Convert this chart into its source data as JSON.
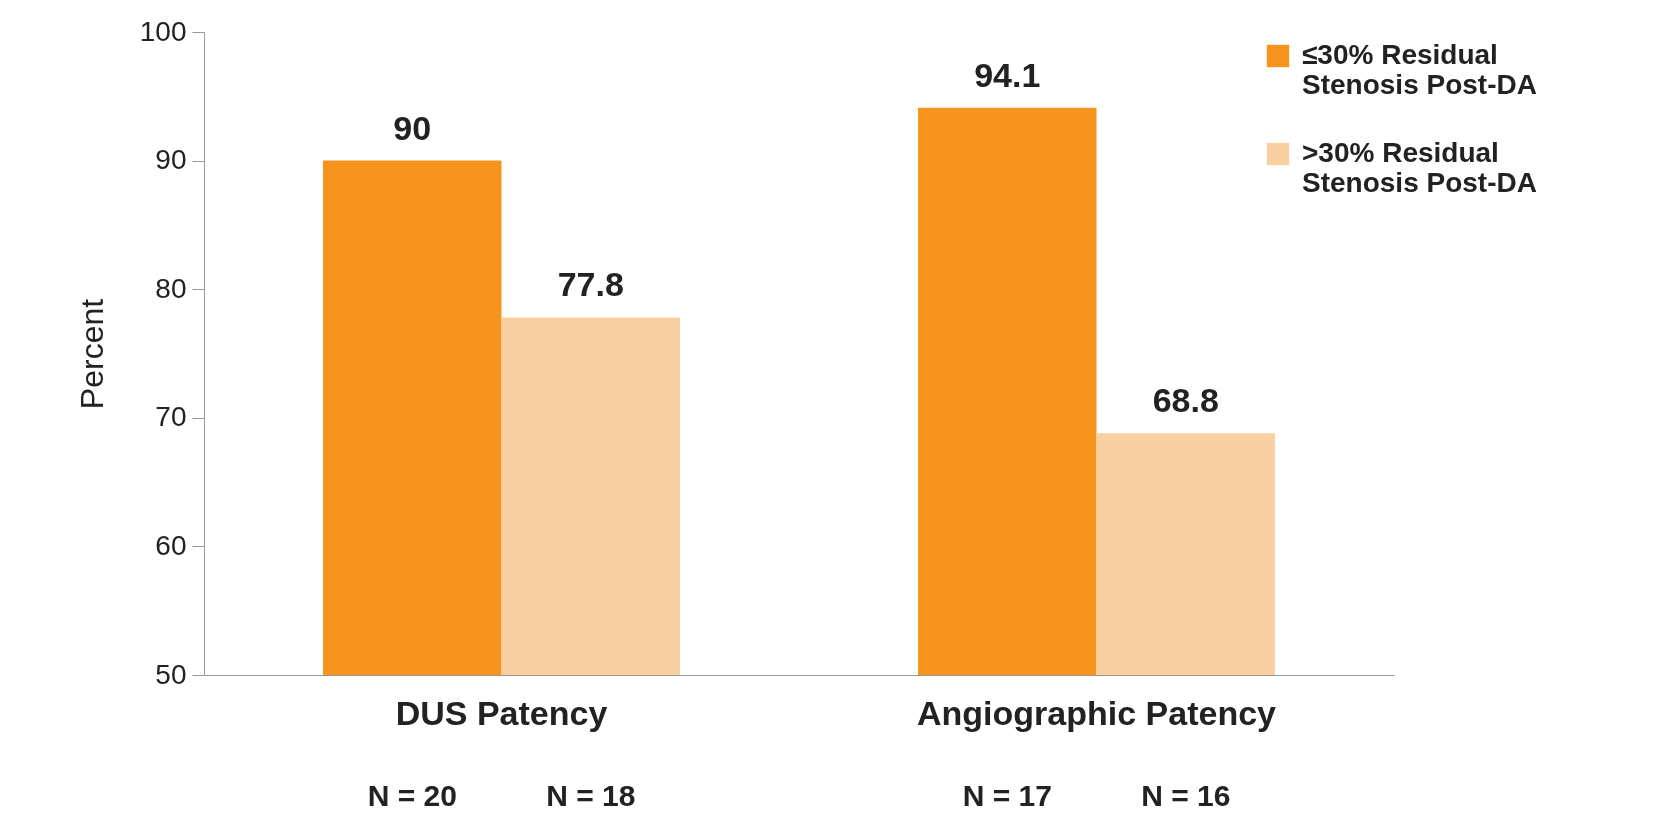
{
  "chart_data": {
    "type": "bar",
    "ylabel": "Percent",
    "categories": [
      "DUS Patency",
      "Angiographic Patency"
    ],
    "series": [
      {
        "name": "≤30% Residual Stenosis Post-DA",
        "color": "#f7941e",
        "values": [
          90,
          94.1
        ]
      },
      {
        "name": ">30% Residual Stenosis Post-DA",
        "color": "#f9d0a1",
        "values": [
          77.8,
          68.8
        ]
      }
    ],
    "ylim": [
      50,
      100
    ],
    "yticks": [
      50,
      60,
      70,
      80,
      90,
      100
    ],
    "data_labels": true,
    "legend": "top right",
    "annotations": [
      "N = 20",
      "N = 18",
      "N = 17",
      "N = 16"
    ]
  }
}
